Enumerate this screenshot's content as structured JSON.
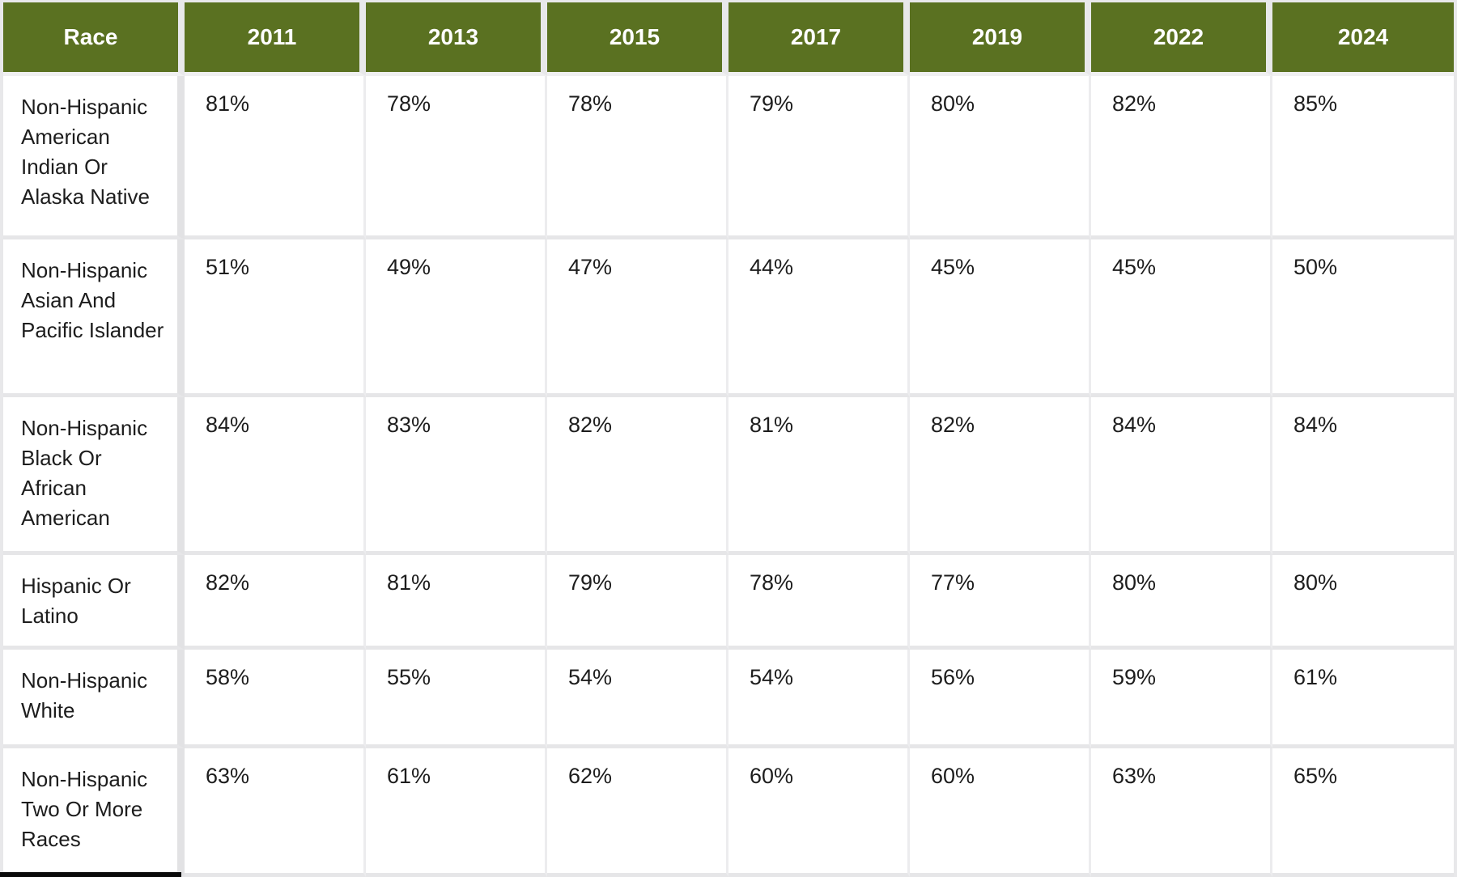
{
  "colors": {
    "header_background": "#5a7121",
    "header_text": "#ffffff",
    "cell_background": "#ffffff",
    "cell_text": "#1d1d1d",
    "grid_gap": "#e6e6e8",
    "bottom_bar": "#0a0a0a"
  },
  "chart_data": {
    "type": "table",
    "row_label_header": "Race",
    "categories": [
      "2011",
      "2013",
      "2015",
      "2017",
      "2019",
      "2022",
      "2024"
    ],
    "unit": "%",
    "series": [
      {
        "name": "Non-Hispanic American Indian Or Alaska Native",
        "values": [
          81,
          78,
          78,
          79,
          80,
          82,
          85
        ]
      },
      {
        "name": "Non-Hispanic Asian And Pacific Islander",
        "values": [
          51,
          49,
          47,
          44,
          45,
          45,
          50
        ]
      },
      {
        "name": "Non-Hispanic Black Or African American",
        "values": [
          84,
          83,
          82,
          81,
          82,
          84,
          84
        ]
      },
      {
        "name": "Hispanic Or Latino",
        "values": [
          82,
          81,
          79,
          78,
          77,
          80,
          80
        ]
      },
      {
        "name": "Non-Hispanic White",
        "values": [
          58,
          55,
          54,
          54,
          56,
          59,
          61
        ]
      },
      {
        "name": "Non-Hispanic Two Or More Races",
        "values": [
          63,
          61,
          62,
          60,
          60,
          63,
          65
        ]
      }
    ]
  }
}
